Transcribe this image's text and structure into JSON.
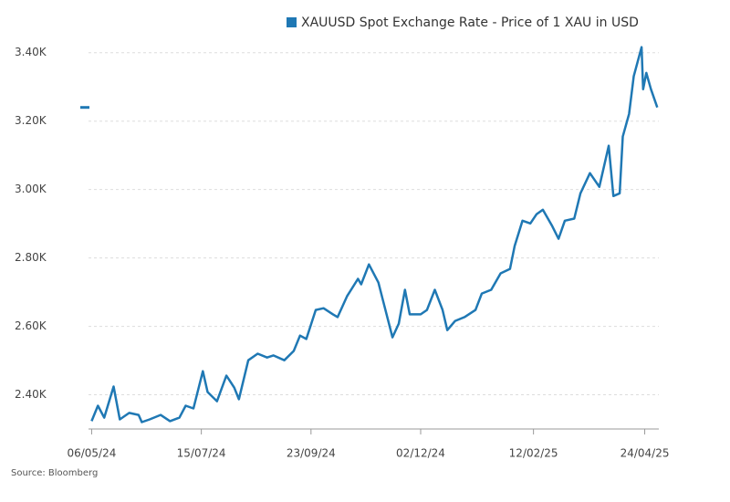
{
  "chart_data": {
    "type": "line",
    "title": "XAUUSD Spot Exchange Rate - Price of 1 XAU in USD",
    "source": "Source: Bloomberg",
    "x": [
      "2024-05-06",
      "2024-05-10",
      "2024-05-14",
      "2024-05-20",
      "2024-05-24",
      "2024-05-30",
      "2024-06-05",
      "2024-06-07",
      "2024-06-12",
      "2024-06-19",
      "2024-06-25",
      "2024-07-01",
      "2024-07-05",
      "2024-07-10",
      "2024-07-16",
      "2024-07-19",
      "2024-07-25",
      "2024-07-31",
      "2024-08-05",
      "2024-08-08",
      "2024-08-14",
      "2024-08-20",
      "2024-08-26",
      "2024-08-30",
      "2024-09-06",
      "2024-09-12",
      "2024-09-16",
      "2024-09-20",
      "2024-09-26",
      "2024-10-01",
      "2024-10-07",
      "2024-10-10",
      "2024-10-16",
      "2024-10-23",
      "2024-10-25",
      "2024-10-30",
      "2024-11-05",
      "2024-11-08",
      "2024-11-11",
      "2024-11-14",
      "2024-11-18",
      "2024-11-22",
      "2024-11-25",
      "2024-12-02",
      "2024-12-06",
      "2024-12-11",
      "2024-12-16",
      "2024-12-19",
      "2024-12-24",
      "2024-12-30",
      "2025-01-06",
      "2025-01-10",
      "2025-01-16",
      "2025-01-22",
      "2025-01-28",
      "2025-01-31",
      "2025-02-05",
      "2025-02-10",
      "2025-02-14",
      "2025-02-18",
      "2025-02-24",
      "2025-02-28",
      "2025-03-04",
      "2025-03-10",
      "2025-03-14",
      "2025-03-20",
      "2025-03-26",
      "2025-04-01",
      "2025-04-04",
      "2025-04-08",
      "2025-04-10",
      "2025-04-14",
      "2025-04-17",
      "2025-04-22",
      "2025-04-23",
      "2025-04-25",
      "2025-04-28",
      "2025-05-02"
    ],
    "series": [
      {
        "name": "XAUUSD Spot Exchange Rate - Price of 1 XAU in USD",
        "color": "#1f78b4",
        "values": [
          2323,
          2368,
          2333,
          2424,
          2328,
          2347,
          2341,
          2320,
          2328,
          2341,
          2323,
          2333,
          2368,
          2360,
          2469,
          2408,
          2381,
          2456,
          2421,
          2387,
          2501,
          2520,
          2509,
          2515,
          2501,
          2528,
          2573,
          2563,
          2648,
          2653,
          2635,
          2627,
          2688,
          2739,
          2723,
          2781,
          2728,
          2675,
          2621,
          2568,
          2608,
          2707,
          2635,
          2635,
          2648,
          2707,
          2648,
          2589,
          2616,
          2627,
          2648,
          2696,
          2707,
          2755,
          2768,
          2835,
          2909,
          2901,
          2928,
          2941,
          2893,
          2856,
          2909,
          2915,
          2989,
          3048,
          3008,
          3128,
          2981,
          2989,
          3155,
          3221,
          3331,
          3416,
          3293,
          3341,
          3293,
          3240
        ]
      }
    ],
    "xlim": [
      "2024-05-04",
      "2025-05-03"
    ],
    "xticks": [
      {
        "value": "2024-05-06",
        "label": "06/05/24"
      },
      {
        "value": "2024-07-15",
        "label": "15/07/24"
      },
      {
        "value": "2024-09-23",
        "label": "23/09/24"
      },
      {
        "value": "2024-12-02",
        "label": "02/12/24"
      },
      {
        "value": "2025-02-12",
        "label": "12/02/25"
      },
      {
        "value": "2025-04-24",
        "label": "24/04/25"
      }
    ],
    "ylim": [
      2300,
      3450
    ],
    "yticks": [
      {
        "value": 2400,
        "label": "2.40K"
      },
      {
        "value": 2600,
        "label": "2.60K"
      },
      {
        "value": 2800,
        "label": "2.80K"
      },
      {
        "value": 3000,
        "label": "3.00K"
      },
      {
        "value": 3200,
        "label": "3.20K"
      },
      {
        "value": 3400,
        "label": "3.40K"
      }
    ],
    "grid": true
  }
}
